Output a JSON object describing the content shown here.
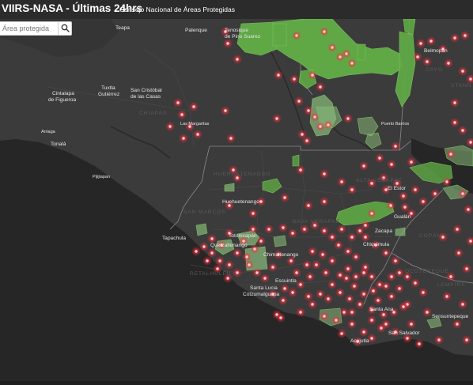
{
  "header": {
    "title": "VIIRS-NASA - Últimas 24hrs",
    "subtitle": "Consejo Nacional de Áreas Protegidas"
  },
  "search": {
    "placeholder": "Área protegida",
    "value": ""
  },
  "colors": {
    "ocean": "#242424",
    "land": "#3a3a3a",
    "protected_area_fill": "#5fa845",
    "protected_area_fill_light": "#9cc98d",
    "fire_point": "#ff3b4c",
    "fire_glow": "#ff2a3a",
    "label_city": "#e6e6e6",
    "label_region": "#5a5a5a",
    "border": "#8a8a8a"
  },
  "map": {
    "city_labels": [
      "Tenosique de Pino Suarez",
      "Palenque",
      "Teapa",
      "Belmopan",
      "Cintalapa de Figueroa",
      "Tuxtla Gutiérrez",
      "San Cristóbal de las Casas",
      "Las Margaritas",
      "Arriaga",
      "Tonalá",
      "Pijijiapan",
      "Huehuetenango",
      "Tapachula",
      "Totonicapán",
      "Quetzaltenango",
      "Chimaltenango",
      "Escuintla",
      "Santa Lucia Cotzumalguapa",
      "El Estor",
      "Gualán",
      "Zacapa",
      "Chiquimula",
      "Santa Ana",
      "San Salvador",
      "Sensuntepeque",
      "Acajutla",
      "Puerto Barrios"
    ],
    "region_labels": [
      "CHIAPAS",
      "HUEHUETENANGO",
      "ALTA VERAPAZ",
      "BAJA VERAPAZ",
      "SAN MARCOS",
      "RETALHULEU",
      "COPÁN",
      "OCOTEPEQUE",
      "CAYO",
      "LEMPIRA",
      "STANN CREEK"
    ],
    "icons": {
      "search": "search-icon"
    }
  }
}
